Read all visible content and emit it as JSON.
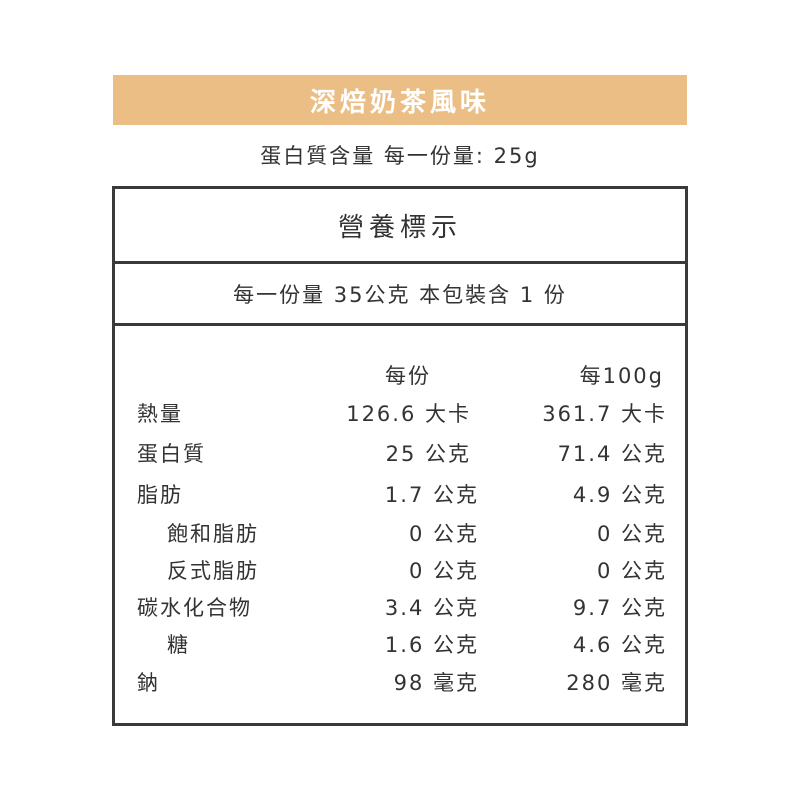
{
  "product_title": "深焙奶茶風味",
  "protein_summary": "蛋白質含量 每一份量: 25g",
  "label_title": "營養標示",
  "serving_info": "每一份量 35公克 本包裝含 1 份",
  "colors": {
    "banner": "#EBBE85",
    "border": "#3a3a3a",
    "text": "#333333"
  },
  "columns": {
    "per_serving": "每份",
    "per_100g": "每100g"
  },
  "rows": [
    {
      "label": "熱量",
      "per_serving": "126.6 大卡",
      "per_100g": "361.7 大卡",
      "indent": false
    },
    {
      "label": "蛋白質",
      "per_serving": "25 公克",
      "per_100g": "71.4 公克",
      "indent": false
    },
    {
      "label": "脂肪",
      "per_serving": "1.7 公克",
      "per_100g": "4.9 公克",
      "indent": false
    },
    {
      "label": "飽和脂肪",
      "per_serving": "0 公克",
      "per_100g": "0 公克",
      "indent": true
    },
    {
      "label": "反式脂肪",
      "per_serving": "0 公克",
      "per_100g": "0 公克",
      "indent": true
    },
    {
      "label": "碳水化合物",
      "per_serving": "3.4 公克",
      "per_100g": "9.7 公克",
      "indent": false
    },
    {
      "label": "糖",
      "per_serving": "1.6 公克",
      "per_100g": "4.6 公克",
      "indent": true
    },
    {
      "label": "鈉",
      "per_serving": "98 毫克",
      "per_100g": "280 毫克",
      "indent": false
    }
  ]
}
